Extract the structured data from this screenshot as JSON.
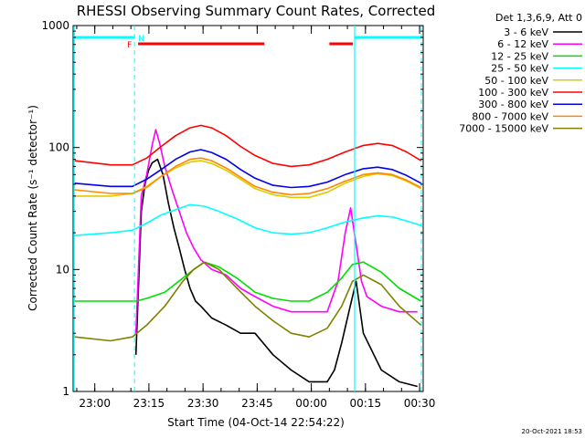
{
  "chart_data": {
    "type": "line",
    "title": "RHESSI Observing Summary Count Rates, Corrected",
    "xlabel": "Start Time (04-Oct-14 22:54:22)",
    "ylabel": "Corrected Count Rate (s⁻¹ detector⁻¹)",
    "ylim": [
      1,
      1000
    ],
    "yscale": "log",
    "x_range_minutes": [
      -0.4,
      96.6
    ],
    "x_ticks": [
      {
        "label": "23:00",
        "minutes": 5.6
      },
      {
        "label": "23:15",
        "minutes": 20.6
      },
      {
        "label": "23:30",
        "minutes": 35.6
      },
      {
        "label": "23:45",
        "minutes": 50.6
      },
      {
        "label": "00:00",
        "minutes": 65.6
      },
      {
        "label": "00:15",
        "minutes": 80.6
      },
      {
        "label": "00:30",
        "minutes": 95.6
      }
    ],
    "y_ticks": [
      {
        "label": "1",
        "value": 1
      },
      {
        "label": "10",
        "value": 10
      },
      {
        "label": "100",
        "value": 100
      },
      {
        "label": "1000",
        "value": 1000
      }
    ],
    "legend_title": "Det 1,3,6,9, Att 0",
    "legend_placement": "right",
    "series": [
      {
        "name": "3 - 6 keV",
        "color": "#000000",
        "x": [
          17.0,
          18.5,
          19.5,
          20.5,
          21.5,
          23.0,
          24.5,
          26.0,
          27.5,
          29.0,
          30.5,
          32.0,
          33.5,
          35.0,
          38.0,
          42.0,
          46.0,
          50.0,
          55.0,
          60.0,
          65.0,
          70.0,
          72.0,
          74.0,
          76.0,
          78.0,
          80.0,
          85.0,
          90.0,
          95.0
        ],
        "y": [
          2,
          30,
          50,
          65,
          75,
          80,
          60,
          35,
          22,
          15,
          10,
          7,
          5.5,
          5,
          4,
          3.5,
          3,
          3,
          2,
          1.5,
          1.2,
          1.2,
          1.5,
          2.5,
          4.5,
          8,
          3,
          1.5,
          1.2,
          1.1
        ]
      },
      {
        "name": "6 - 12 keV",
        "color": "#ff00ff",
        "x": [
          17.0,
          18.5,
          20.0,
          21.5,
          22.5,
          23.5,
          25.0,
          27.0,
          29.0,
          31.0,
          33.0,
          35.0,
          38.0,
          42.0,
          46.0,
          50.0,
          55.0,
          60.0,
          65.0,
          70.0,
          73.0,
          75.0,
          76.5,
          78.0,
          79.5,
          81.0,
          85.0,
          90.0,
          95.0
        ],
        "y": [
          3,
          40,
          60,
          105,
          140,
          110,
          70,
          45,
          30,
          20,
          15,
          12,
          10,
          9,
          7,
          6,
          5,
          4.5,
          4.5,
          4.5,
          8,
          20,
          32,
          16,
          8,
          6,
          5,
          4.5,
          4.5
        ]
      },
      {
        "name": "12 - 25 keV",
        "color": "#00dd00",
        "x": [
          0.0,
          10.0,
          17.0,
          20.0,
          25.0,
          30.0,
          33.0,
          36.0,
          40.0,
          45.0,
          50.0,
          55.0,
          60.0,
          65.0,
          70.0,
          74.0,
          77.0,
          80.0,
          85.0,
          90.0,
          96.0
        ],
        "y": [
          5.5,
          5.5,
          5.5,
          5.8,
          6.5,
          8.5,
          10,
          11.5,
          10.5,
          8.5,
          6.5,
          5.8,
          5.5,
          5.5,
          6.5,
          8.5,
          11,
          11.5,
          9.5,
          7,
          5.5
        ]
      },
      {
        "name": "25 - 50 keV",
        "color": "#00ffff",
        "x": [
          0.0,
          10.0,
          16.0,
          20.0,
          24.0,
          28.0,
          32.0,
          36.0,
          40.0,
          45.0,
          50.0,
          55.0,
          60.0,
          65.0,
          70.0,
          75.0,
          80.0,
          84.0,
          88.0,
          92.0,
          96.0
        ],
        "y": [
          19,
          20,
          21,
          24,
          28,
          31,
          34,
          33,
          30,
          26,
          22,
          20,
          19.5,
          20,
          22,
          24.5,
          26.5,
          27.5,
          27,
          25,
          23
        ]
      },
      {
        "name": "50 - 100 keV",
        "color": "#ddcc00",
        "x": [
          0.0,
          10.0,
          16.0,
          20.0,
          24.0,
          28.0,
          32.0,
          35.0,
          38.0,
          42.0,
          46.0,
          50.0,
          55.0,
          60.0,
          65.0,
          70.0,
          75.0,
          80.0,
          84.0,
          88.0,
          92.0,
          96.0
        ],
        "y": [
          40,
          40,
          42,
          48,
          58,
          68,
          76,
          78,
          74,
          65,
          55,
          46,
          41,
          39,
          39,
          43,
          51,
          58,
          61,
          59,
          53,
          46
        ]
      },
      {
        "name": "100 - 300 keV",
        "color": "#ff0000",
        "x": [
          0.0,
          10.0,
          16.0,
          20.0,
          24.0,
          28.0,
          32.0,
          35.0,
          38.0,
          42.0,
          46.0,
          50.0,
          55.0,
          60.0,
          65.0,
          70.0,
          75.0,
          80.0,
          84.0,
          88.0,
          92.0,
          96.0
        ],
        "y": [
          78,
          72,
          72,
          82,
          102,
          125,
          145,
          152,
          145,
          125,
          102,
          86,
          74,
          70,
          72,
          80,
          92,
          104,
          108,
          104,
          92,
          78
        ]
      },
      {
        "name": "300 - 800 keV",
        "color": "#0000ee",
        "x": [
          0.0,
          10.0,
          16.0,
          20.0,
          24.0,
          28.0,
          32.0,
          35.0,
          38.0,
          42.0,
          46.0,
          50.0,
          55.0,
          60.0,
          65.0,
          70.0,
          75.0,
          80.0,
          84.0,
          88.0,
          92.0,
          96.0
        ],
        "y": [
          51,
          48,
          48,
          55,
          66,
          80,
          92,
          96,
          91,
          80,
          66,
          56,
          49,
          47,
          48,
          52,
          60,
          67,
          69,
          66,
          59,
          51
        ]
      },
      {
        "name": "800 - 7000 keV",
        "color": "#ff8800",
        "x": [
          0.0,
          10.0,
          16.0,
          20.0,
          24.0,
          28.0,
          32.0,
          35.0,
          38.0,
          42.0,
          46.0,
          50.0,
          55.0,
          60.0,
          65.0,
          70.0,
          75.0,
          80.0,
          84.0,
          88.0,
          92.0,
          96.0
        ],
        "y": [
          45,
          42,
          42,
          47,
          58,
          70,
          80,
          82,
          78,
          68,
          57,
          48,
          43,
          41,
          42,
          46,
          53,
          60,
          62,
          60,
          54,
          47
        ]
      },
      {
        "name": "7000 - 15000 keV",
        "color": "#808000",
        "x": [
          0.0,
          10.0,
          16.0,
          20.0,
          25.0,
          30.0,
          33.0,
          36.0,
          40.0,
          45.0,
          50.0,
          55.0,
          60.0,
          65.0,
          70.0,
          74.0,
          77.0,
          80.0,
          85.0,
          90.0,
          96.0
        ],
        "y": [
          2.8,
          2.6,
          2.8,
          3.5,
          5,
          8,
          10,
          11.5,
          10,
          7,
          5,
          3.8,
          3,
          2.8,
          3.3,
          5,
          8,
          9,
          7.5,
          5,
          3.5
        ]
      }
    ],
    "annotations": {
      "night_flag": "N",
      "flare_flag": "F",
      "flag_colors": {
        "night": "#00ffff",
        "flare": "#ff0000"
      },
      "night_intervals_minutes": [
        [
          -0.4,
          16.6
        ],
        [
          77.6,
          96.1
        ]
      ],
      "flare_intervals_minutes": [
        [
          17.6,
          52.6
        ],
        [
          70.6,
          77.1
        ]
      ],
      "dashed_markers_minutes": [
        16.6,
        77.6,
        96.1
      ]
    }
  },
  "footer_date": "20-Oct-2021 18:53"
}
